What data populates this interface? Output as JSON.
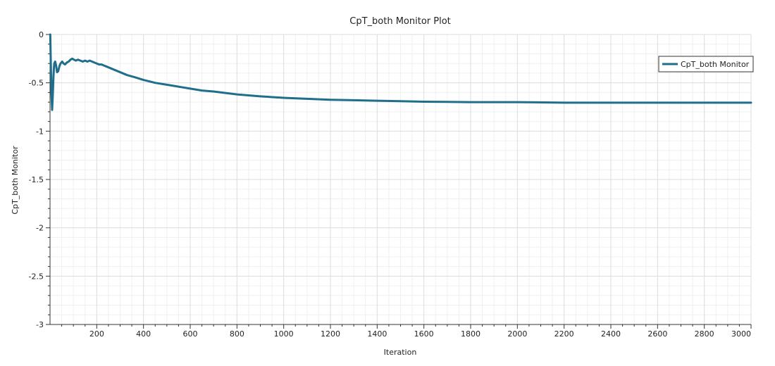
{
  "chart_data": {
    "type": "line",
    "title": "CpT_both Monitor Plot",
    "xlabel": "Iteration",
    "ylabel": "CpT_both Monitor",
    "xlim": [
      0,
      3000
    ],
    "ylim": [
      -3,
      0
    ],
    "x_ticks": [
      200,
      400,
      600,
      800,
      1000,
      1200,
      1400,
      1600,
      1800,
      2000,
      2200,
      2400,
      2600,
      2800,
      3000
    ],
    "y_ticks": [
      0,
      -0.5,
      -1,
      -1.5,
      -2,
      -2.5,
      -3
    ],
    "y_tick_labels": [
      "0",
      "-0.5",
      "-1",
      "-1.5",
      "-2",
      "-2.5",
      "-3"
    ],
    "grid": true,
    "legend_position": "top-right",
    "series": [
      {
        "name": "CpT_both Monitor",
        "color": "#1f6e8c",
        "points": [
          [
            1,
            0
          ],
          [
            3,
            -0.25
          ],
          [
            6,
            -0.6
          ],
          [
            9,
            -0.78
          ],
          [
            12,
            -0.62
          ],
          [
            15,
            -0.42
          ],
          [
            18,
            -0.3
          ],
          [
            22,
            -0.28
          ],
          [
            26,
            -0.32
          ],
          [
            30,
            -0.39
          ],
          [
            35,
            -0.38
          ],
          [
            40,
            -0.33
          ],
          [
            45,
            -0.3
          ],
          [
            52,
            -0.28
          ],
          [
            58,
            -0.3
          ],
          [
            64,
            -0.31
          ],
          [
            72,
            -0.29
          ],
          [
            80,
            -0.28
          ],
          [
            88,
            -0.26
          ],
          [
            95,
            -0.25
          ],
          [
            102,
            -0.26
          ],
          [
            110,
            -0.27
          ],
          [
            120,
            -0.26
          ],
          [
            130,
            -0.27
          ],
          [
            140,
            -0.28
          ],
          [
            150,
            -0.27
          ],
          [
            160,
            -0.28
          ],
          [
            170,
            -0.27
          ],
          [
            180,
            -0.28
          ],
          [
            190,
            -0.29
          ],
          [
            200,
            -0.3
          ],
          [
            210,
            -0.31
          ],
          [
            220,
            -0.31
          ],
          [
            230,
            -0.32
          ],
          [
            240,
            -0.33
          ],
          [
            260,
            -0.35
          ],
          [
            280,
            -0.37
          ],
          [
            300,
            -0.39
          ],
          [
            330,
            -0.42
          ],
          [
            360,
            -0.44
          ],
          [
            400,
            -0.47
          ],
          [
            450,
            -0.5
          ],
          [
            500,
            -0.52
          ],
          [
            550,
            -0.54
          ],
          [
            600,
            -0.56
          ],
          [
            650,
            -0.58
          ],
          [
            700,
            -0.59
          ],
          [
            800,
            -0.62
          ],
          [
            900,
            -0.64
          ],
          [
            1000,
            -0.655
          ],
          [
            1100,
            -0.665
          ],
          [
            1200,
            -0.675
          ],
          [
            1300,
            -0.68
          ],
          [
            1400,
            -0.685
          ],
          [
            1500,
            -0.69
          ],
          [
            1600,
            -0.695
          ],
          [
            1800,
            -0.7
          ],
          [
            2000,
            -0.7
          ],
          [
            2200,
            -0.705
          ],
          [
            2400,
            -0.705
          ],
          [
            2600,
            -0.705
          ],
          [
            2800,
            -0.705
          ],
          [
            3000,
            -0.705
          ]
        ]
      }
    ]
  }
}
